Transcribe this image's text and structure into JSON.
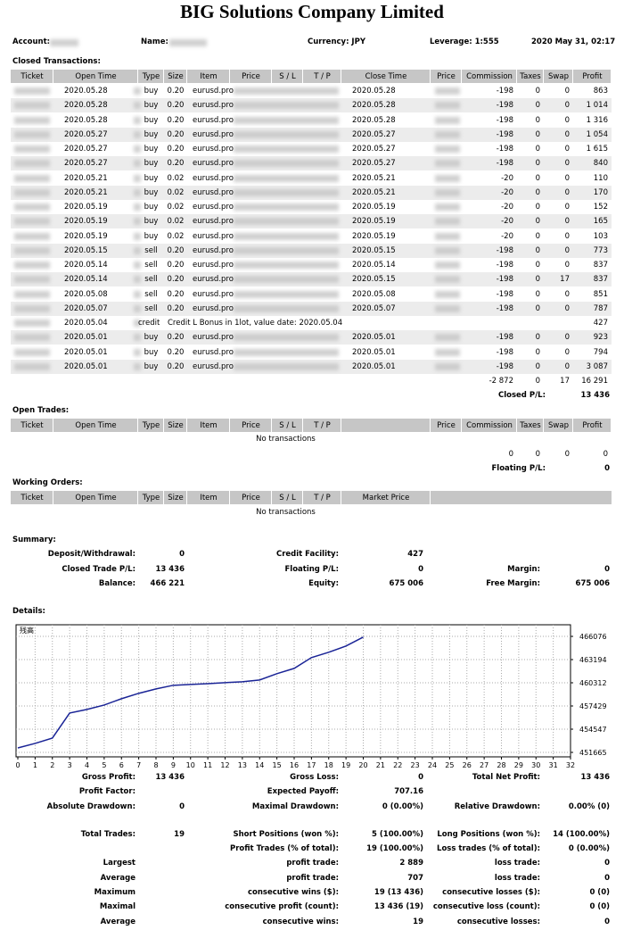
{
  "header": {
    "title": "BIG Solutions Company Limited",
    "account": "Account:",
    "name": "Name:",
    "currency": "Currency: JPY",
    "leverage": "Leverage: 1:555",
    "date": "2020 May 31, 02:17"
  },
  "closed": {
    "title": "Closed Transactions:",
    "columns": [
      "Ticket",
      "Open Time",
      "Type",
      "Size",
      "Item",
      "Price",
      "S / L",
      "T / P",
      "Close Time",
      "Price",
      "Commission",
      "Taxes",
      "Swap",
      "Profit"
    ],
    "rows": [
      [
        null,
        "2020.05.28",
        "buy",
        "0.20",
        "eurusd.pro",
        null,
        null,
        null,
        "2020.05.28",
        null,
        "-198",
        "0",
        "0",
        "863"
      ],
      [
        null,
        "2020.05.28",
        "buy",
        "0.20",
        "eurusd.pro",
        null,
        null,
        null,
        "2020.05.28",
        null,
        "-198",
        "0",
        "0",
        "1 014"
      ],
      [
        null,
        "2020.05.28",
        "buy",
        "0.20",
        "eurusd.pro",
        null,
        null,
        null,
        "2020.05.28",
        null,
        "-198",
        "0",
        "0",
        "1 316"
      ],
      [
        null,
        "2020.05.27",
        "buy",
        "0.20",
        "eurusd.pro",
        null,
        null,
        null,
        "2020.05.27",
        null,
        "-198",
        "0",
        "0",
        "1 054"
      ],
      [
        null,
        "2020.05.27",
        "buy",
        "0.20",
        "eurusd.pro",
        null,
        null,
        null,
        "2020.05.27",
        null,
        "-198",
        "0",
        "0",
        "1 615"
      ],
      [
        null,
        "2020.05.27",
        "buy",
        "0.20",
        "eurusd.pro",
        null,
        null,
        null,
        "2020.05.27",
        null,
        "-198",
        "0",
        "0",
        "840"
      ],
      [
        null,
        "2020.05.21",
        "buy",
        "0.02",
        "eurusd.pro",
        null,
        null,
        null,
        "2020.05.21",
        null,
        "-20",
        "0",
        "0",
        "110"
      ],
      [
        null,
        "2020.05.21",
        "buy",
        "0.02",
        "eurusd.pro",
        null,
        null,
        null,
        "2020.05.21",
        null,
        "-20",
        "0",
        "0",
        "170"
      ],
      [
        null,
        "2020.05.19",
        "buy",
        "0.02",
        "eurusd.pro",
        null,
        null,
        null,
        "2020.05.19",
        null,
        "-20",
        "0",
        "0",
        "152"
      ],
      [
        null,
        "2020.05.19",
        "buy",
        "0.02",
        "eurusd.pro",
        null,
        null,
        null,
        "2020.05.19",
        null,
        "-20",
        "0",
        "0",
        "165"
      ],
      [
        null,
        "2020.05.19",
        "buy",
        "0.02",
        "eurusd.pro",
        null,
        null,
        null,
        "2020.05.19",
        null,
        "-20",
        "0",
        "0",
        "103"
      ],
      [
        null,
        "2020.05.15",
        "sell",
        "0.20",
        "eurusd.pro",
        null,
        null,
        null,
        "2020.05.15",
        null,
        "-198",
        "0",
        "0",
        "773"
      ],
      [
        null,
        "2020.05.14",
        "sell",
        "0.20",
        "eurusd.pro",
        null,
        null,
        null,
        "2020.05.14",
        null,
        "-198",
        "0",
        "0",
        "837"
      ],
      [
        null,
        "2020.05.14",
        "sell",
        "0.20",
        "eurusd.pro",
        null,
        null,
        null,
        "2020.05.15",
        null,
        "-198",
        "0",
        "17",
        "837"
      ],
      [
        null,
        "2020.05.08",
        "sell",
        "0.20",
        "eurusd.pro",
        null,
        null,
        null,
        "2020.05.08",
        null,
        "-198",
        "0",
        "0",
        "851"
      ],
      [
        null,
        "2020.05.07",
        "sell",
        "0.20",
        "eurusd.pro",
        null,
        null,
        null,
        "2020.05.07",
        null,
        "-198",
        "0",
        "0",
        "787"
      ],
      [
        null,
        "2020.05.04",
        "credit",
        "Credit L Bonus in 1lot, value date: 2020.05.04",
        "427"
      ],
      [
        null,
        "2020.05.01",
        "buy",
        "0.20",
        "eurusd.pro",
        null,
        null,
        null,
        "2020.05.01",
        null,
        "-198",
        "0",
        "0",
        "923"
      ],
      [
        null,
        "2020.05.01",
        "buy",
        "0.20",
        "eurusd.pro",
        null,
        null,
        null,
        "2020.05.01",
        null,
        "-198",
        "0",
        "0",
        "794"
      ],
      [
        null,
        "2020.05.01",
        "buy",
        "0.20",
        "eurusd.pro",
        null,
        null,
        null,
        "2020.05.01",
        null,
        "-198",
        "0",
        "0",
        "3 087"
      ]
    ],
    "totals": [
      "-2 872",
      "0",
      "17",
      "16 291"
    ],
    "pl_label": "Closed P/L:",
    "pl": "13 436"
  },
  "open": {
    "title": "Open Trades:",
    "columns": [
      "Ticket",
      "Open Time",
      "Type",
      "Size",
      "Item",
      "Price",
      "S / L",
      "T / P",
      null,
      "Price",
      "Commission",
      "Taxes",
      "Swap",
      "Profit"
    ],
    "empty": "No transactions",
    "totals": [
      "0",
      "0",
      "0",
      "0"
    ],
    "pl_label": "Floating P/L:",
    "pl": "0"
  },
  "working": {
    "title": "Working Orders:",
    "columns": [
      "Ticket",
      "Open Time",
      "Type",
      "Size",
      "Item",
      "Price",
      "S / L",
      "T / P",
      "Market Price"
    ],
    "empty": "No transactions"
  },
  "summary": {
    "title": "Summary:",
    "rows": [
      [
        [
          "Deposit/Withdrawal:",
          "0"
        ],
        [
          "Credit Facility:",
          "427"
        ],
        null
      ],
      [
        [
          "Closed Trade P/L:",
          "13 436"
        ],
        [
          "Floating P/L:",
          "0"
        ],
        [
          "Margin:",
          "0"
        ]
      ],
      [
        [
          "Balance:",
          "466 221"
        ],
        [
          "Equity:",
          "675 006"
        ],
        [
          "Free Margin:",
          "675 006"
        ]
      ]
    ]
  },
  "details": {
    "title": "Details:",
    "chart": {
      "type": "line",
      "label": "残高",
      "x": [
        0,
        1,
        2,
        3,
        4,
        5,
        6,
        7,
        8,
        9,
        10,
        11,
        12,
        13,
        14,
        15,
        16,
        17,
        18,
        19,
        20
      ],
      "values": [
        452220,
        452780,
        453440,
        456550,
        457000,
        457550,
        458330,
        459000,
        459550,
        460000,
        460100,
        460200,
        460330,
        460440,
        460660,
        461440,
        462100,
        463440,
        464100,
        464880,
        465990
      ],
      "xlim": [
        0,
        32
      ],
      "xticks": [
        0,
        1,
        2,
        3,
        4,
        5,
        6,
        7,
        8,
        9,
        10,
        11,
        12,
        13,
        14,
        15,
        16,
        17,
        18,
        19,
        20,
        21,
        22,
        23,
        24,
        25,
        26,
        27,
        28,
        29,
        30,
        31,
        32
      ],
      "ylim": [
        451110,
        467520
      ],
      "yticks": [
        451665,
        454547,
        457429,
        460312,
        463194,
        466076
      ],
      "color": "#1a2496",
      "grid": true
    },
    "rows": [
      [
        [
          "Gross Profit:",
          "13 436"
        ],
        [
          "Gross Loss:",
          "0"
        ],
        [
          "Total Net Profit:",
          "13 436"
        ]
      ],
      [
        [
          "Profit Factor:"
        ],
        [
          "Expected Payoff:",
          "707.16"
        ],
        null
      ],
      [
        [
          "Absolute Drawdown:",
          "0"
        ],
        [
          "Maximal Drawdown:",
          "0 (0.00%)"
        ],
        [
          "Relative Drawdown:",
          "0.00% (0)"
        ]
      ],
      [
        [
          "Total Trades:",
          "19"
        ],
        [
          "Short Positions (won %):",
          "5 (100.00%)"
        ],
        [
          "Long Positions (won %):",
          "14 (100.00%)"
        ]
      ],
      [
        null,
        [
          "Profit Trades (% of total):",
          "19 (100.00%)"
        ],
        [
          "Loss trades (% of total):",
          "0 (0.00%)"
        ]
      ],
      [
        [
          "Largest"
        ],
        [
          "profit trade:",
          "2 889"
        ],
        [
          "loss trade:",
          "0"
        ]
      ],
      [
        [
          "Average"
        ],
        [
          "profit trade:",
          "707"
        ],
        [
          "loss trade:",
          "0"
        ]
      ],
      [
        [
          "Maximum"
        ],
        [
          "consecutive wins ($):",
          "19 (13 436)"
        ],
        [
          "consecutive losses ($):",
          "0 (0)"
        ]
      ],
      [
        [
          "Maximal"
        ],
        [
          "consecutive profit (count):",
          "13 436 (19)"
        ],
        [
          "consecutive loss (count):",
          "0 (0)"
        ]
      ],
      [
        [
          "Average"
        ],
        [
          "consecutive wins:",
          "19"
        ],
        [
          "consecutive losses:",
          "0"
        ]
      ]
    ]
  }
}
